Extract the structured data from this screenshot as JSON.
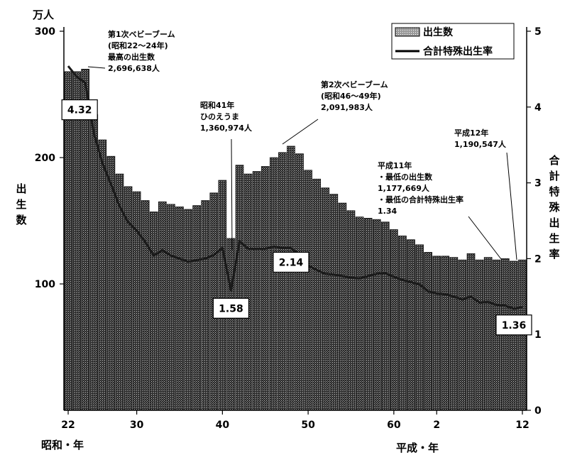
{
  "chart_data": {
    "type": "bar",
    "x_axis": {
      "era_label_showa": "昭和・年",
      "era_label_heisei": "平成・年",
      "tick_labels": [
        {
          "year": 1947,
          "label": "22"
        },
        {
          "year": 1955,
          "label": "30"
        },
        {
          "year": 1965,
          "label": "40"
        },
        {
          "year": 1975,
          "label": "50"
        },
        {
          "year": 1985,
          "label": "60"
        },
        {
          "year": 1990,
          "label": "2"
        },
        {
          "year": 2000,
          "label": "12"
        }
      ]
    },
    "y_left": {
      "unit": "万人",
      "title": "出生数",
      "ylim": [
        0,
        300
      ],
      "ticks": [
        "100",
        "200",
        "300"
      ]
    },
    "y_right": {
      "title": "合計特殊出生率",
      "ylim": [
        0,
        5
      ],
      "ticks": [
        "0",
        "1",
        "2",
        "3",
        "4",
        "5"
      ]
    },
    "legend": {
      "position": "top-right",
      "entries": [
        "出生数",
        "合計特殊出生率"
      ]
    },
    "years": [
      1947,
      1948,
      1949,
      1950,
      1951,
      1952,
      1953,
      1954,
      1955,
      1956,
      1957,
      1958,
      1959,
      1960,
      1961,
      1962,
      1963,
      1964,
      1965,
      1966,
      1967,
      1968,
      1969,
      1970,
      1971,
      1972,
      1973,
      1974,
      1975,
      1976,
      1977,
      1978,
      1979,
      1980,
      1981,
      1982,
      1983,
      1984,
      1985,
      1986,
      1987,
      1988,
      1989,
      1990,
      1991,
      1992,
      1993,
      1994,
      1995,
      1996,
      1997,
      1998,
      1999,
      2000
    ],
    "series": [
      {
        "name": "出生数",
        "kind": "bar",
        "axis": "left",
        "values": [
          268,
          268,
          270,
          234,
          214,
          201,
          187,
          177,
          173,
          166,
          157,
          165,
          163,
          161,
          159,
          162,
          166,
          172,
          182,
          136,
          194,
          187,
          189,
          193,
          200,
          204,
          209,
          203,
          190,
          183,
          176,
          171,
          164,
          158,
          153,
          152,
          151,
          149,
          143,
          138,
          135,
          131,
          125,
          122,
          122,
          121,
          119,
          124,
          119,
          121,
          119,
          120,
          118,
          119
        ]
      },
      {
        "name": "合計特殊出生率",
        "kind": "line",
        "axis": "right",
        "values": [
          4.54,
          4.4,
          4.32,
          3.65,
          3.26,
          2.98,
          2.69,
          2.48,
          2.37,
          2.22,
          2.04,
          2.11,
          2.04,
          2.0,
          1.96,
          1.98,
          2.0,
          2.05,
          2.14,
          1.58,
          2.23,
          2.13,
          2.13,
          2.13,
          2.16,
          2.14,
          2.14,
          2.05,
          1.91,
          1.85,
          1.8,
          1.79,
          1.77,
          1.75,
          1.74,
          1.77,
          1.8,
          1.81,
          1.76,
          1.72,
          1.69,
          1.66,
          1.57,
          1.54,
          1.53,
          1.5,
          1.46,
          1.5,
          1.42,
          1.43,
          1.39,
          1.38,
          1.34,
          1.36
        ]
      }
    ],
    "callouts": [
      {
        "year": 1949,
        "text": "4.32"
      },
      {
        "year": 1966,
        "text": "1.58"
      },
      {
        "year": 1973,
        "text": "2.14"
      },
      {
        "year": 2000,
        "text": "1.36"
      }
    ],
    "annotations": [
      {
        "id": "boom1",
        "lines": [
          "第1次ベビーブーム",
          "(昭和22～24年)",
          "最高の出生数",
          "2,696,638人"
        ]
      },
      {
        "id": "hinoeuma",
        "lines": [
          "昭和41年",
          "ひのえうま",
          "1,360,974人"
        ]
      },
      {
        "id": "boom2",
        "lines": [
          "第2次ベビーブーム",
          "(昭和46～49年)",
          "2,091,983人"
        ]
      },
      {
        "id": "h11",
        "lines": [
          "平成11年",
          "・最低の出生数",
          "1,177,669人",
          "・最低の合計特殊出生率",
          "1.34"
        ]
      },
      {
        "id": "h12",
        "lines": [
          "平成12年",
          "1,190,547人"
        ]
      }
    ]
  }
}
